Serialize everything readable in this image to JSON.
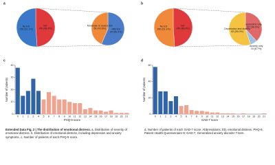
{
  "chart_data": [
    {
      "type": "pie",
      "panel": "a",
      "categories": [
        "ED",
        "No ED"
      ],
      "values": [
        149,
        156
      ],
      "value_labels": [
        "149 (48.9%)",
        "156 (51.1%)"
      ],
      "colors": [
        "#e0393c",
        "#3a78c9"
      ],
      "breakdown": {
        "categories": [
          "Mild ED",
          "Moderate to severe ED"
        ],
        "values": [
          84,
          65
        ],
        "value_labels": [
          "84 (56.4%)",
          "65 (43.6%)"
        ],
        "colors": [
          "#4a7cc9",
          "#f08a3a"
        ]
      }
    },
    {
      "type": "pie",
      "panel": "b",
      "categories": [
        "ED",
        "No ED"
      ],
      "values": [
        149,
        156
      ],
      "value_labels": [
        "149 (48.9%)",
        "156 (51.1%)"
      ],
      "colors": [
        "#e0393c",
        "#f08a3a"
      ],
      "breakdown": {
        "categories": [
          "Depression only",
          "Anxiety only",
          "Depression and anxiety"
        ],
        "values": [
          57,
          10,
          82
        ],
        "value_labels": [
          "57 (38.3%)",
          "10 (6.7%)",
          "82 (55.0%)"
        ],
        "colors": [
          "#e06868",
          "#9cc3e6",
          "#f5c242"
        ]
      }
    },
    {
      "type": "bar",
      "panel": "c",
      "x_label": "PHQ-9 score",
      "y_label": "Number of patients",
      "categories": [
        0,
        1,
        2,
        3,
        4,
        5,
        6,
        7,
        8,
        9,
        10,
        11,
        12,
        13,
        14,
        15,
        16,
        17,
        18,
        19,
        20,
        21
      ],
      "values": [
        38,
        15,
        19,
        29,
        19,
        12,
        18,
        15,
        12,
        12,
        10,
        9,
        9,
        4,
        5,
        3,
        3,
        2,
        3,
        1,
        1,
        1
      ],
      "colors": [
        "#2f65a8",
        "#2f65a8",
        "#2f65a8",
        "#2f65a8",
        "#2f65a8",
        "#f0a490",
        "#f0a490",
        "#f0a490",
        "#f0a490",
        "#f0a490",
        "#f0a490",
        "#f0a490",
        "#f0a490",
        "#f0a490",
        "#f0a490",
        "#f0a490",
        "#f0a490",
        "#f0a490",
        "#f0a490",
        "#f0a490",
        "#f0a490",
        "#f0a490"
      ],
      "ylim": [
        0,
        40
      ],
      "yticks": [
        0,
        10,
        20,
        30,
        40
      ]
    },
    {
      "type": "bar",
      "panel": "d",
      "x_label": "GAD-7 score",
      "y_label": "Number of patients",
      "categories": [
        0,
        1,
        2,
        3,
        4,
        5,
        6,
        7,
        8,
        9,
        10,
        11,
        12,
        13,
        14,
        15,
        16,
        17,
        18,
        19,
        20,
        21
      ],
      "values": [
        58,
        28,
        28,
        16,
        22,
        10,
        11,
        5,
        4,
        4,
        3,
        2,
        2,
        1,
        1,
        1,
        0,
        1,
        0,
        0,
        0,
        1
      ],
      "colors": [
        "#2f65a8",
        "#2f65a8",
        "#2f65a8",
        "#2f65a8",
        "#2f65a8",
        "#f0a490",
        "#f0a490",
        "#f0a490",
        "#f0a490",
        "#f0a490",
        "#f0a490",
        "#f0a490",
        "#f0a490",
        "#f0a490",
        "#f0a490",
        "#f0a490",
        "#f0a490",
        "#f0a490",
        "#f0a490",
        "#f0a490",
        "#f0a490",
        "#f0a490"
      ],
      "ylim": [
        0,
        60
      ],
      "yticks": [
        0,
        20,
        40,
        60
      ]
    }
  ],
  "caption": {
    "left_title": "Extended Data Fig. 2 | The distribution of emotional distress.",
    "left_text": "a, Distribution of severity of emotional distress. b, Distribution of emotional distress, including depression and anxiety symptoms. c, Number of patients of each PHQ-9 score.",
    "right_text": "d, Number of patients of each GAD-7 score. Abbreviations: ED, emotional distress. PHQ-9, Patient Health Questionnaire-9; GAD-7, Generalized anxiety disorder 7-item."
  }
}
